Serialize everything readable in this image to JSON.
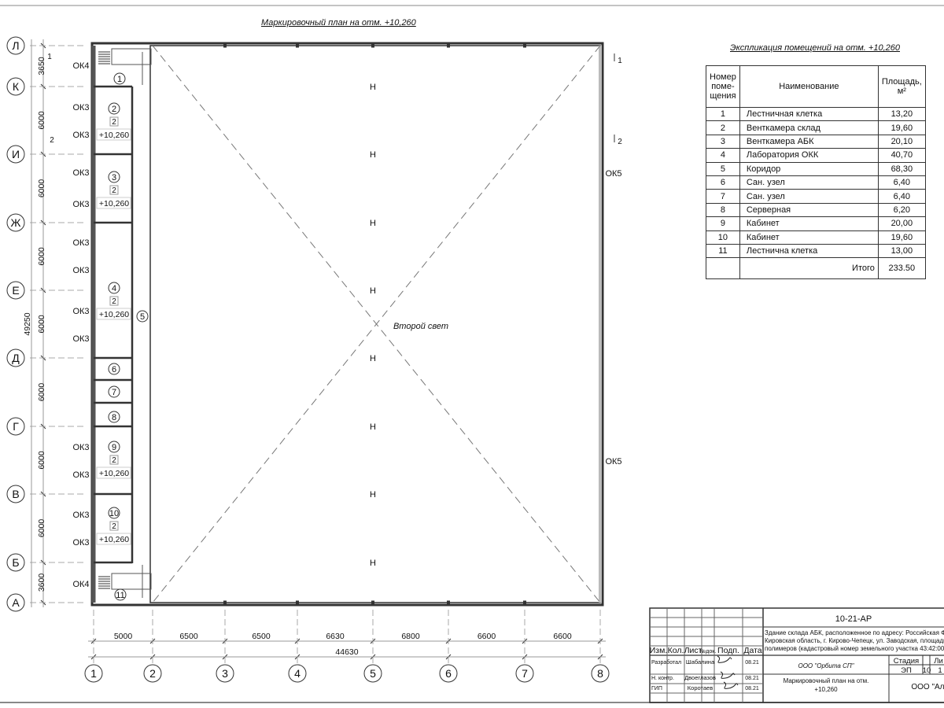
{
  "plan_title": "Маркировочный план на отм. +10,260",
  "center_label": "Второй свет",
  "axes_letters": [
    "Л",
    "К",
    "И",
    "Ж",
    "Е",
    "Д",
    "Г",
    "В",
    "Б",
    "А"
  ],
  "axes_numbers": [
    "1",
    "2",
    "3",
    "4",
    "5",
    "6",
    "7",
    "8"
  ],
  "vertical_dims": [
    "3650",
    "6000",
    "6000",
    "6000",
    "6000",
    "6000",
    "6000",
    "6000",
    "3600"
  ],
  "vertical_total": "49250",
  "horizontal_dims": [
    "5000",
    "6500",
    "6500",
    "6630",
    "6800",
    "6600",
    "6600"
  ],
  "horizontal_total": "44630",
  "section_marks": [
    "1",
    "2"
  ],
  "rooms": [
    {
      "num": "1"
    },
    {
      "num": "2",
      "tag": "2",
      "level": "+10,260"
    },
    {
      "num": "3",
      "tag": "2",
      "level": "+10,260"
    },
    {
      "num": "4",
      "tag": "2",
      "level": "+10,260"
    },
    {
      "num": "5"
    },
    {
      "num": "6"
    },
    {
      "num": "7"
    },
    {
      "num": "8"
    },
    {
      "num": "9",
      "tag": "2",
      "level": "+10,260"
    },
    {
      "num": "10",
      "tag": "2",
      "level": "+10,260"
    },
    {
      "num": "11"
    }
  ],
  "window_marks_left": [
    "ОК4",
    "ОК3",
    "ОК3",
    "ОК3",
    "ОК3",
    "ОК3",
    "ОК3",
    "ОК3",
    "ОК3",
    "ОК3",
    "ОК3",
    "ОК3",
    "ОК3",
    "ОК4"
  ],
  "window_marks_right": [
    "ОК5",
    "ОК5"
  ],
  "column_mark": "Н",
  "explication": {
    "title": "Экспликация помещений на отм. +10,260",
    "headers": {
      "num": "Номер поме-щения",
      "name": "Наименование",
      "area": "Площадь, м²"
    },
    "rows": [
      {
        "num": "1",
        "name": "Лестничная клетка",
        "area": "13,20"
      },
      {
        "num": "2",
        "name": "Венткамера склад",
        "area": "19,60"
      },
      {
        "num": "3",
        "name": "Венткамера АБК",
        "area": "20,10"
      },
      {
        "num": "4",
        "name": "Лаборатория ОКК",
        "area": "40,70"
      },
      {
        "num": "5",
        "name": "Коридор",
        "area": "68,30"
      },
      {
        "num": "6",
        "name": "Сан. узел",
        "area": "6,40"
      },
      {
        "num": "7",
        "name": "Сан. узел",
        "area": "6,40"
      },
      {
        "num": "8",
        "name": "Серверная",
        "area": "6,20"
      },
      {
        "num": "9",
        "name": "Кабинет",
        "area": "20,00"
      },
      {
        "num": "10",
        "name": "Кабинет",
        "area": "19,60"
      },
      {
        "num": "11",
        "name": "Лестнична клетка",
        "area": "13,00"
      }
    ],
    "total_label": "Итого",
    "total_value": "233.50"
  },
  "title_block": {
    "code": "10-21-АР",
    "address_lines": [
      "Здание склада АБК, расположенное по адресу: Российская Феде",
      "Кировская область, г. Кирово-Чепецк, ул. Заводская, площадка з",
      "полимеров (кадастровый номер земельного участка 43:42:0000"
    ],
    "col_headers": [
      "Изм.",
      "Кол.",
      "Лист",
      "№док.",
      "Подп.",
      "Дата"
    ],
    "people": [
      {
        "role": "Разработал",
        "name": "Шабалина",
        "date": "08.21"
      },
      {
        "role": "Н. контр.",
        "name": "Двоеглазов",
        "date": "08.21"
      },
      {
        "role": "ГИП",
        "name": "Коротаев",
        "date": "08.21"
      }
    ],
    "designer": "ООО \"Орбита СП\"",
    "sheet_title_1": "Маркировочный план на отм.",
    "sheet_title_2": "+10,260",
    "stage_header": "Стадия",
    "sheet_header": "Лист",
    "sheets_header": "Ли",
    "stage": "ЭП",
    "sheet": "10",
    "sheets": "1",
    "company": "ООО \"Альянс"
  }
}
